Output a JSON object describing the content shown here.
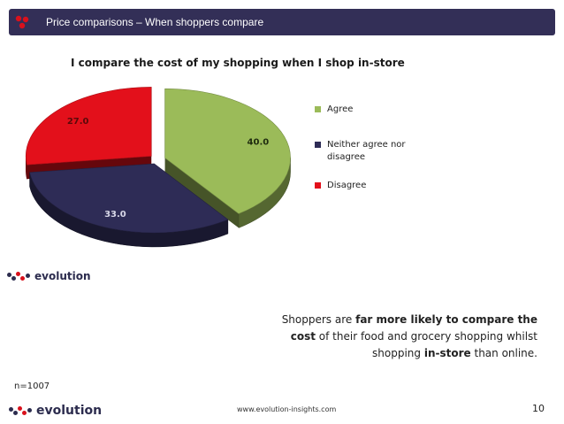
{
  "header": {
    "title": "Price comparisons – When shoppers compare"
  },
  "chart_data": {
    "type": "pie",
    "title": "I compare the cost of my shopping when I shop in-store",
    "categories": [
      "Agree",
      "Neither agree nor disagree",
      "Disagree"
    ],
    "values": [
      40.0,
      33.0,
      27.0
    ],
    "labels": [
      "40.0",
      "33.0",
      "27.0"
    ],
    "colors": [
      "#9bbb59",
      "#2e2c56",
      "#e3101b"
    ],
    "legend_position": "right",
    "exploded": true,
    "style": "3d"
  },
  "brand": {
    "name": "evolution"
  },
  "callout": {
    "part1": "Shoppers are ",
    "bold1": "far more likely to compare the cost",
    "part2": " of their food and grocery shopping whilst shopping ",
    "bold2": "in-store",
    "part3": " than online."
  },
  "footer": {
    "sample_size": "n=1007",
    "url": "www.evolution-insights.com",
    "page_number": "10"
  },
  "colors": {
    "header_bg": "#332f57",
    "logo_red": "#d9111c",
    "logo_navy": "#2c2c4e"
  }
}
